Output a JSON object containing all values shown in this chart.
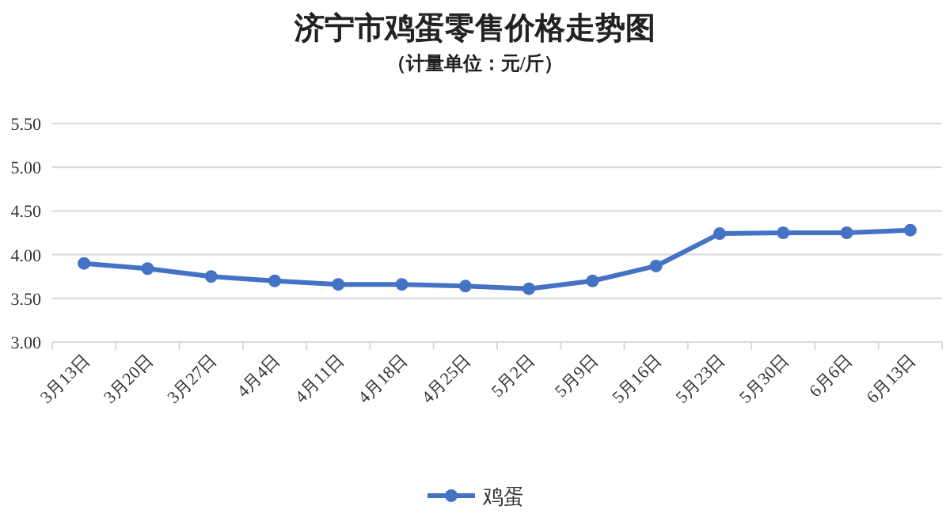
{
  "chart_data": {
    "type": "line",
    "title": "济宁市鸡蛋零售价格走势图",
    "subtitle": "（计量单位：元/斤）",
    "categories": [
      "3月13日",
      "3月20日",
      "3月27日",
      "4月4日",
      "4月11日",
      "4月18日",
      "4月25日",
      "5月2日",
      "5月9日",
      "5月16日",
      "5月23日",
      "5月30日",
      "6月6日",
      "6月13日"
    ],
    "series": [
      {
        "name": "鸡蛋",
        "color": "#4472c4",
        "values": [
          3.9,
          3.84,
          3.75,
          3.7,
          3.66,
          3.66,
          3.64,
          3.61,
          3.7,
          3.87,
          4.24,
          4.25,
          4.25,
          4.28
        ]
      }
    ],
    "ylim": [
      3,
      5.5
    ],
    "yticks": [
      {
        "value": 3,
        "label": "3.00"
      },
      {
        "value": 3.5,
        "label": "3.50"
      },
      {
        "value": 4,
        "label": "4.00"
      },
      {
        "value": 4.5,
        "label": "4.50"
      },
      {
        "value": 5,
        "label": "5.00"
      },
      {
        "value": 5.5,
        "label": "5.50"
      }
    ],
    "grid": "y",
    "legend": "bottom",
    "marker": "circle",
    "line_style": "solid"
  }
}
